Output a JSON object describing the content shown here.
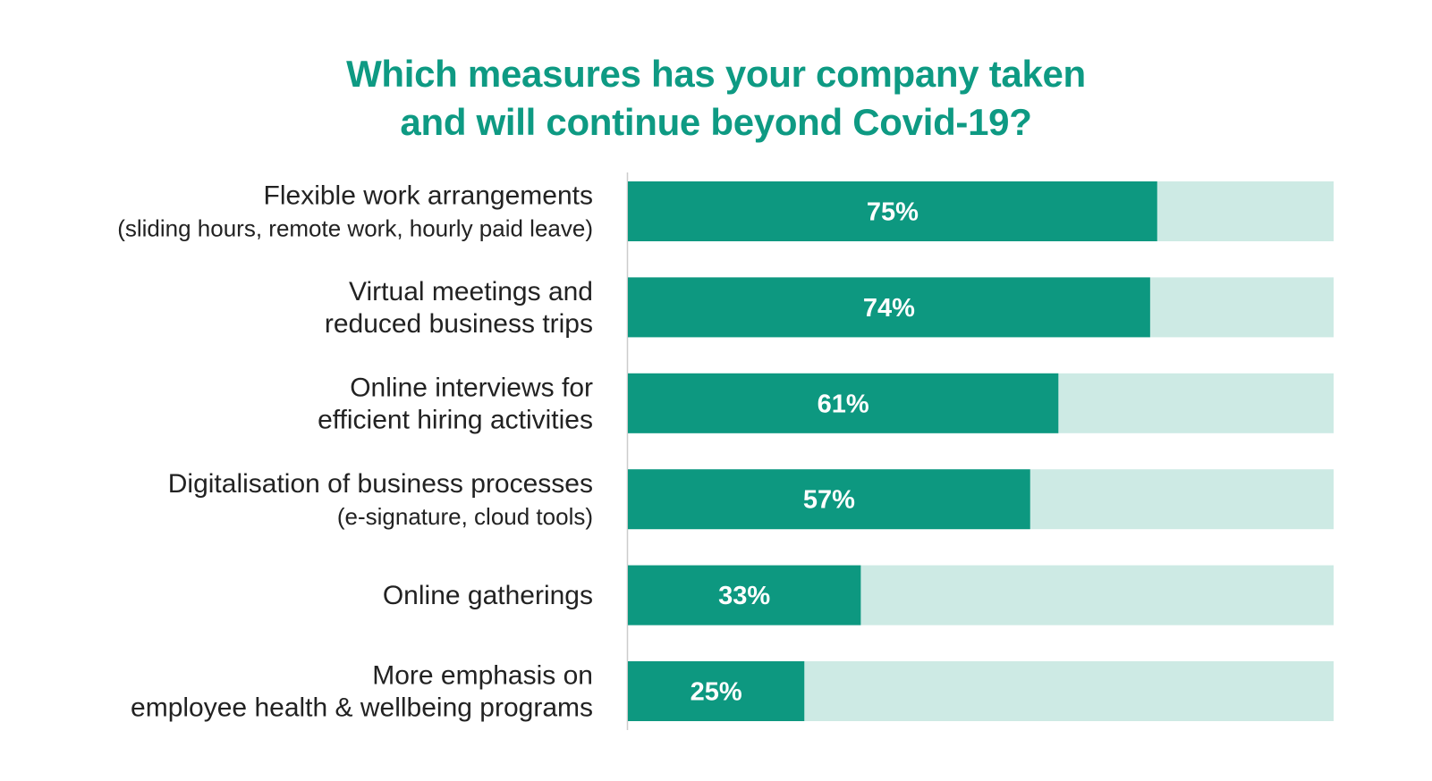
{
  "title_lines": [
    "Which measures has your company taken",
    "and will continue beyond Covid-19?"
  ],
  "colors": {
    "title": "#0e9a83",
    "bar": "#0d9880",
    "track": "#cdeae4",
    "axis": "#cccccc",
    "label": "#222222",
    "value_text": "#ffffff"
  },
  "chart_data": {
    "type": "bar",
    "orientation": "horizontal",
    "stacked_track": true,
    "xlim": [
      0,
      100
    ],
    "value_suffix": "%",
    "grid": false,
    "categories": [
      "Flexible work arrangements (sliding hours, remote work, hourly paid leave)",
      "Virtual meetings and reduced business trips",
      "Online interviews for efficient hiring activities",
      "Digitalisation of business processes (e-signature, cloud tools)",
      "Online gatherings",
      "More emphasis on employee health & wellbeing programs"
    ],
    "category_lines": [
      {
        "main": [
          "Flexible work arrangements"
        ],
        "sub": [
          "(sliding hours, remote work, hourly paid leave)"
        ]
      },
      {
        "main": [
          "Virtual meetings and",
          "reduced business trips"
        ],
        "sub": []
      },
      {
        "main": [
          "Online interviews for",
          "efficient hiring activities"
        ],
        "sub": []
      },
      {
        "main": [
          "Digitalisation of business processes"
        ],
        "sub": [
          "(e-signature, cloud tools)"
        ]
      },
      {
        "main": [
          "Online gatherings"
        ],
        "sub": []
      },
      {
        "main": [
          "More emphasis on",
          "employee health & wellbeing programs"
        ],
        "sub": []
      }
    ],
    "values": [
      75,
      74,
      61,
      57,
      33,
      25
    ],
    "value_labels": [
      "75%",
      "74%",
      "61%",
      "57%",
      "33%",
      "25%"
    ]
  }
}
